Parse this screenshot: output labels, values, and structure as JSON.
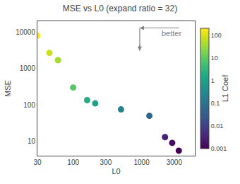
{
  "chart_data": {
    "type": "scatter",
    "title": "MSE vs L0 (expand ratio = 32)",
    "xlabel": "L0",
    "ylabel": "MSE",
    "x": [
      30,
      45,
      60,
      100,
      160,
      210,
      500,
      1300,
      2200,
      2800,
      3500
    ],
    "values": [
      8000,
      2700,
      1700,
      300,
      135,
      110,
      75,
      50,
      13,
      9,
      5.5
    ],
    "color_values": [
      200.0,
      80.0,
      40.0,
      8.0,
      2.0,
      1.0,
      0.2,
      0.05,
      0.003,
      0.0015,
      0.0006
    ],
    "colorbar_label": "L1 Coef",
    "colorbar_range": [
      0.001,
      200
    ],
    "colorbar_ticks": [
      0.001,
      0.01,
      0.1,
      1,
      10,
      100
    ],
    "xlim": [
      30,
      6000
    ],
    "ylim": [
      4,
      20000
    ],
    "xticks": [
      30,
      100,
      300,
      1000,
      3000
    ],
    "yticks": [
      10,
      100,
      1000,
      10000
    ],
    "log": true,
    "grid": false,
    "marker": "circle",
    "annotations": [
      {
        "text": "better"
      }
    ]
  }
}
